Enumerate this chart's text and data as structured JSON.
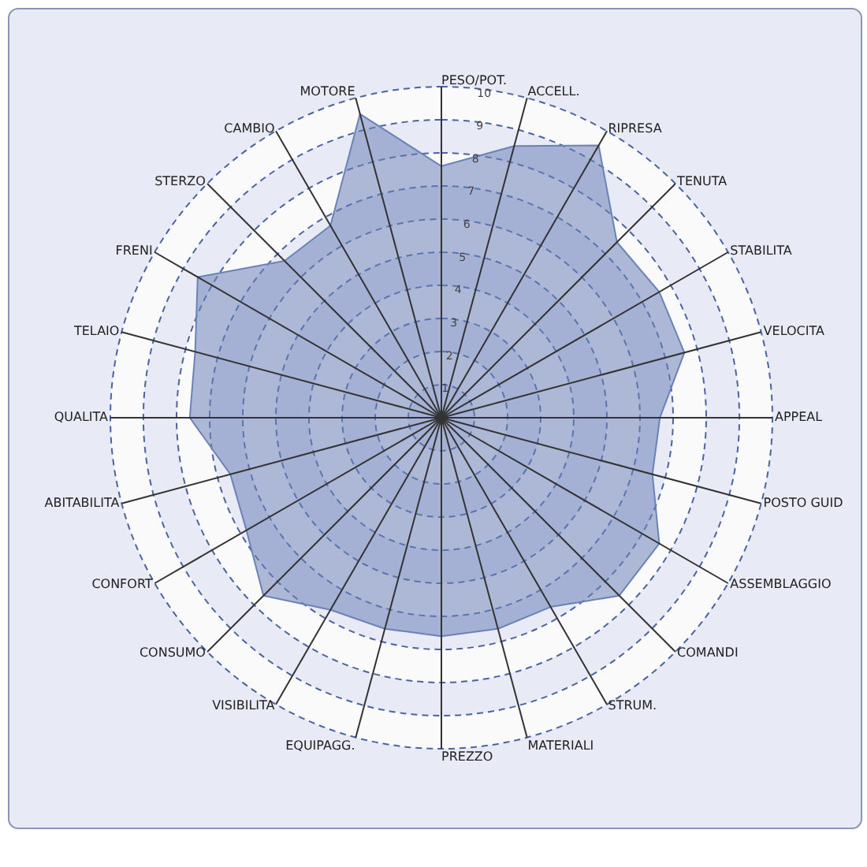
{
  "chart_data": {
    "type": "radar",
    "categories": [
      "PESO/POT.",
      "ACCELL.",
      "RIPRESA",
      "TENUTA",
      "STABILITA",
      "VELOCITA",
      "APPEAL",
      "POSTO GUID",
      "ASSEMBLAGGIO",
      "COMANDI",
      "STRUM.",
      "MATERIALI",
      "PREZZO",
      "EQUIPAGG.",
      "VISIBILITA",
      "CONSUMO",
      "CONFORT",
      "ABITABILITA",
      "QUALITA",
      "TELAIO",
      "FRENI",
      "STERZO",
      "CAMBIO",
      "MOTORE"
    ],
    "series": [
      {
        "color": "#6b82b8",
        "values": [
          7.6,
          8.5,
          9.5,
          7.5,
          7.6,
          7.6,
          6.6,
          6.6,
          7.6,
          7.6,
          6.6,
          6.6,
          6.6,
          6.6,
          6.7,
          7.6,
          6.8,
          6.6,
          7.6,
          7.7,
          8.5,
          6.7,
          6.7,
          9.5
        ]
      }
    ],
    "ylim": [
      0,
      10
    ],
    "yticks": [
      1,
      2,
      3,
      4,
      5,
      6,
      7,
      8,
      9,
      10
    ],
    "grid": true
  }
}
